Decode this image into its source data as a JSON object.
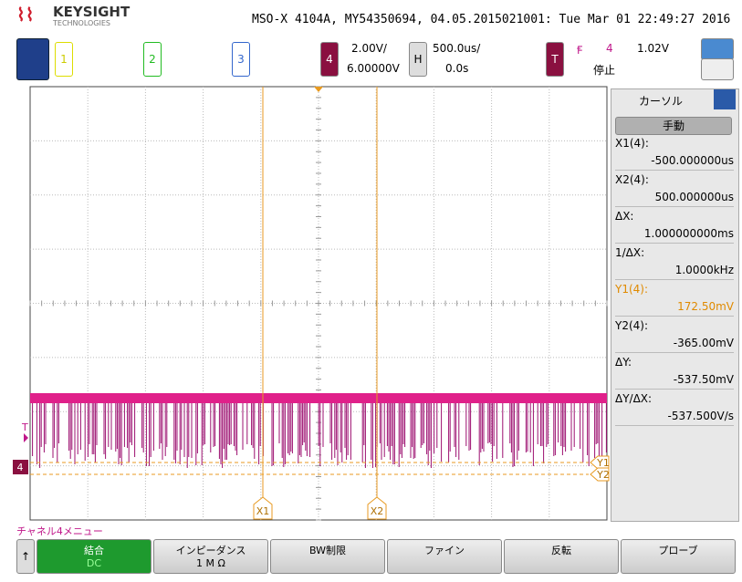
{
  "header": {
    "brand": "KEYSIGHT",
    "brand_sub": "TECHNOLOGIES",
    "instrument": "MSO-X 4104A, MY54350694, 04.05.2015021001: Tue Mar 01 22:49:27 2016"
  },
  "toolbar": {
    "channels": [
      "1",
      "2",
      "3",
      "4"
    ],
    "ch4_scale": "2.00V/",
    "ch4_offset": "6.00000V",
    "horizontal_label": "H",
    "time_scale": "500.0us/",
    "time_delay": "0.0s",
    "trigger_label": "T",
    "trigger_source": "4",
    "trigger_level": "1.02V",
    "run_state": "停止"
  },
  "display": {
    "cursor_x1": "X1",
    "cursor_x2": "X2",
    "cursor_y1": "Y1",
    "cursor_y2": "Y2",
    "trigger_marker": "T",
    "channel_marker": "4"
  },
  "cursor_panel": {
    "title": "カーソル",
    "mode": "手動",
    "readouts": [
      {
        "label": "X1(4):",
        "value": "-500.000000us"
      },
      {
        "label": "X2(4):",
        "value": "500.000000us"
      },
      {
        "label": "ΔX:",
        "value": "1.000000000ms"
      },
      {
        "label": "1/ΔX:",
        "value": "1.0000kHz"
      },
      {
        "label": "Y1(4):",
        "value": "172.50mV"
      },
      {
        "label": "Y2(4):",
        "value": "-365.00mV"
      },
      {
        "label": "ΔY:",
        "value": "-537.50mV"
      },
      {
        "label": "ΔY/ΔX:",
        "value": "-537.500V/s"
      }
    ]
  },
  "softkey_menu": {
    "title": "チャネル4メニュー",
    "keys": [
      {
        "label": "結合",
        "value": "DC"
      },
      {
        "label": "インピーダンス",
        "value": "1 M Ω"
      },
      {
        "label": "BW制限"
      },
      {
        "label": "ファイン"
      },
      {
        "label": "反転"
      },
      {
        "label": "プローブ"
      }
    ]
  }
}
